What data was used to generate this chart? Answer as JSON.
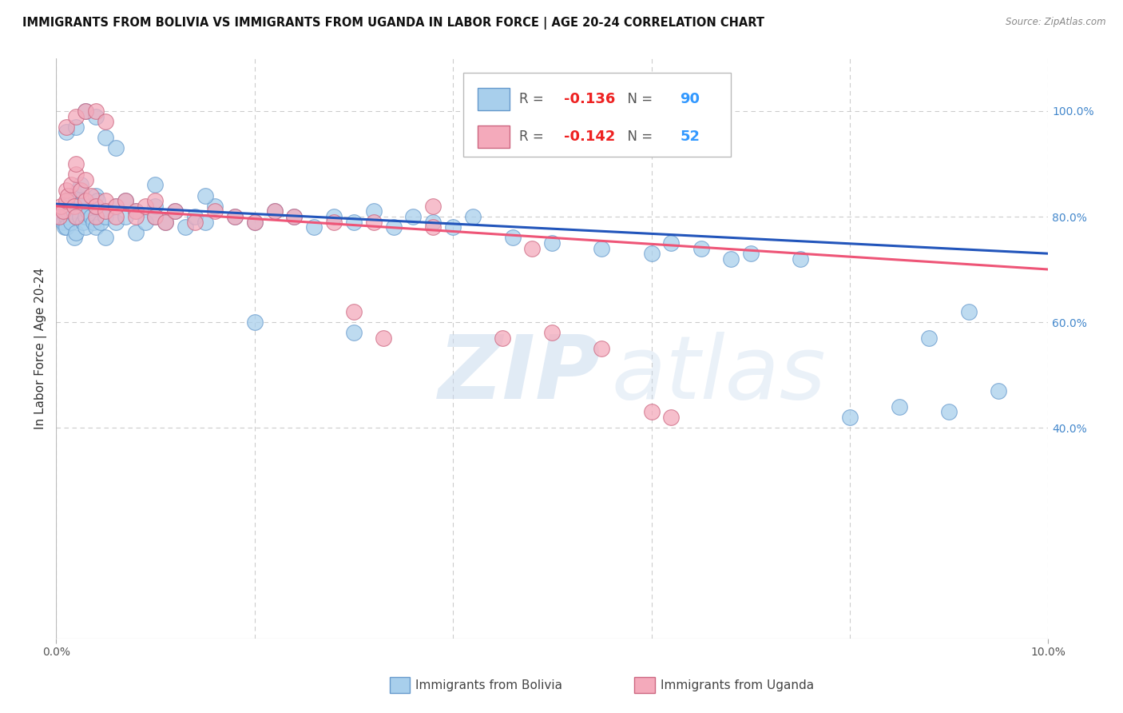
{
  "title": "IMMIGRANTS FROM BOLIVIA VS IMMIGRANTS FROM UGANDA IN LABOR FORCE | AGE 20-24 CORRELATION CHART",
  "source": "Source: ZipAtlas.com",
  "ylabel": "In Labor Force | Age 20-24",
  "xlim": [
    0.0,
    0.1
  ],
  "ylim": [
    0.0,
    1.1
  ],
  "xticks": [
    0.0,
    0.02,
    0.04,
    0.06,
    0.08,
    0.1
  ],
  "xticklabels_ends": [
    "0.0%",
    "10.0%"
  ],
  "yticks_right": [
    0.4,
    0.6,
    0.8,
    1.0
  ],
  "yticklabels_right": [
    "40.0%",
    "60.0%",
    "80.0%",
    "100.0%"
  ],
  "bolivia_color": "#A8CFEC",
  "bolivia_edge": "#6699CC",
  "uganda_color": "#F4AABB",
  "uganda_edge": "#CC6680",
  "bolivia_R": -0.136,
  "bolivia_N": 90,
  "uganda_R": -0.142,
  "uganda_N": 52,
  "trend_blue": "#2255BB",
  "trend_pink": "#EE5577",
  "bolivia_x": [
    0.0003,
    0.0005,
    0.0007,
    0.0009,
    0.001,
    0.001,
    0.001,
    0.0012,
    0.0013,
    0.0015,
    0.0015,
    0.0016,
    0.0018,
    0.002,
    0.002,
    0.002,
    0.002,
    0.002,
    0.0022,
    0.0024,
    0.0025,
    0.0027,
    0.003,
    0.003,
    0.003,
    0.003,
    0.0032,
    0.0035,
    0.0038,
    0.004,
    0.004,
    0.004,
    0.0042,
    0.0045,
    0.005,
    0.005,
    0.005,
    0.006,
    0.006,
    0.007,
    0.007,
    0.008,
    0.008,
    0.009,
    0.01,
    0.01,
    0.011,
    0.012,
    0.013,
    0.014,
    0.015,
    0.016,
    0.018,
    0.02,
    0.022,
    0.024,
    0.026,
    0.028,
    0.03,
    0.032,
    0.034,
    0.036,
    0.038,
    0.04,
    0.042,
    0.046,
    0.05,
    0.055,
    0.06,
    0.062,
    0.065,
    0.068,
    0.07,
    0.075,
    0.08,
    0.085,
    0.088,
    0.09,
    0.092,
    0.095,
    0.001,
    0.002,
    0.003,
    0.004,
    0.005,
    0.006,
    0.01,
    0.015,
    0.02,
    0.03
  ],
  "bolivia_y": [
    0.8,
    0.8,
    0.79,
    0.78,
    0.82,
    0.8,
    0.78,
    0.81,
    0.83,
    0.79,
    0.81,
    0.84,
    0.76,
    0.82,
    0.8,
    0.84,
    0.77,
    0.83,
    0.85,
    0.8,
    0.86,
    0.79,
    0.82,
    0.8,
    0.83,
    0.78,
    0.81,
    0.8,
    0.79,
    0.82,
    0.84,
    0.78,
    0.83,
    0.79,
    0.81,
    0.8,
    0.76,
    0.82,
    0.79,
    0.8,
    0.83,
    0.81,
    0.77,
    0.79,
    0.82,
    0.8,
    0.79,
    0.81,
    0.78,
    0.8,
    0.79,
    0.82,
    0.8,
    0.79,
    0.81,
    0.8,
    0.78,
    0.8,
    0.79,
    0.81,
    0.78,
    0.8,
    0.79,
    0.78,
    0.8,
    0.76,
    0.75,
    0.74,
    0.73,
    0.75,
    0.74,
    0.72,
    0.73,
    0.72,
    0.42,
    0.44,
    0.57,
    0.43,
    0.62,
    0.47,
    0.96,
    0.97,
    1.0,
    0.99,
    0.95,
    0.93,
    0.86,
    0.84,
    0.6,
    0.58
  ],
  "uganda_x": [
    0.0003,
    0.0005,
    0.0007,
    0.001,
    0.001,
    0.0012,
    0.0015,
    0.0018,
    0.002,
    0.002,
    0.002,
    0.0025,
    0.003,
    0.003,
    0.0035,
    0.004,
    0.004,
    0.005,
    0.005,
    0.006,
    0.006,
    0.007,
    0.008,
    0.008,
    0.009,
    0.01,
    0.011,
    0.012,
    0.014,
    0.016,
    0.018,
    0.02,
    0.022,
    0.024,
    0.028,
    0.032,
    0.038,
    0.045,
    0.05,
    0.055,
    0.06,
    0.062,
    0.001,
    0.002,
    0.003,
    0.004,
    0.005,
    0.01,
    0.03,
    0.033,
    0.038,
    0.048
  ],
  "uganda_y": [
    0.8,
    0.82,
    0.81,
    0.85,
    0.83,
    0.84,
    0.86,
    0.82,
    0.88,
    0.8,
    0.9,
    0.85,
    0.87,
    0.83,
    0.84,
    0.8,
    0.82,
    0.83,
    0.81,
    0.82,
    0.8,
    0.83,
    0.81,
    0.8,
    0.82,
    0.8,
    0.79,
    0.81,
    0.79,
    0.81,
    0.8,
    0.79,
    0.81,
    0.8,
    0.79,
    0.79,
    0.78,
    0.57,
    0.58,
    0.55,
    0.43,
    0.42,
    0.97,
    0.99,
    1.0,
    1.0,
    0.98,
    0.83,
    0.62,
    0.57,
    0.82,
    0.74
  ],
  "watermark_text": "ZIP",
  "watermark_text2": "atlas",
  "background_color": "#FFFFFF",
  "grid_color": "#CCCCCC",
  "title_fontsize": 10.5,
  "marker_size": 200
}
